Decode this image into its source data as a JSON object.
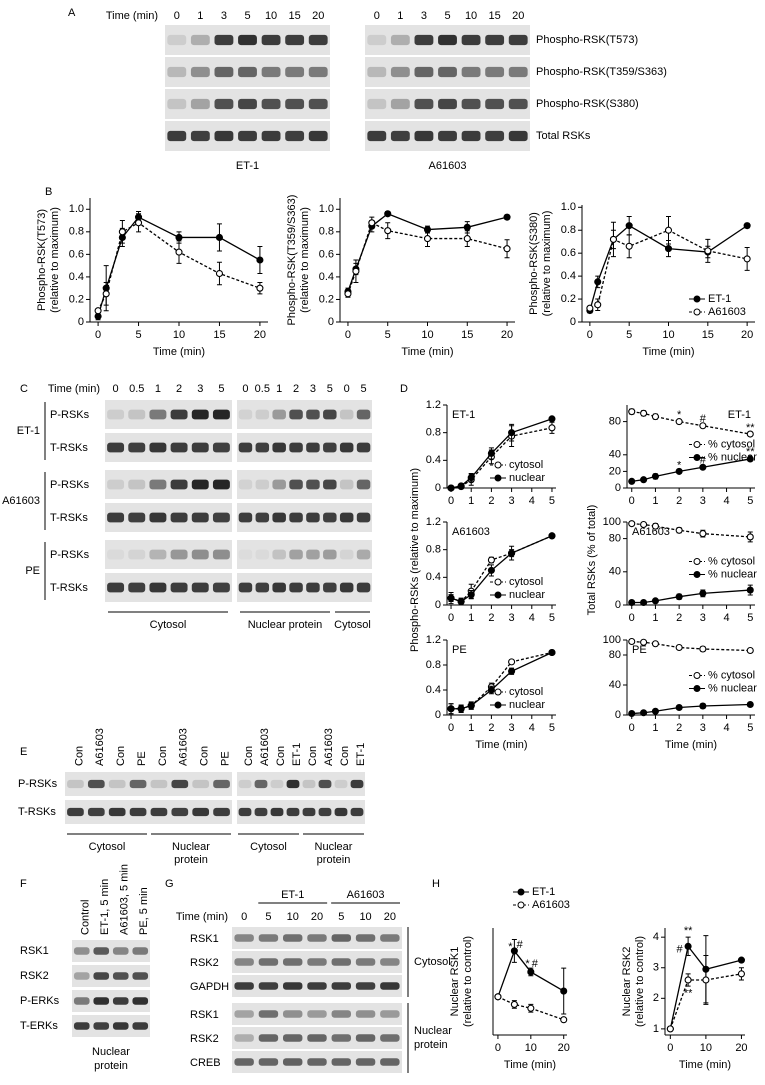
{
  "panels": {
    "A": {
      "letter": "A",
      "time_label": "Time (min)",
      "times": [
        "0",
        "1",
        "3",
        "5",
        "10",
        "15",
        "20"
      ],
      "rows": [
        "Phospho-RSK(T573)",
        "Phospho-RSK(T359/S363)",
        "Phospho-RSK(S380)",
        "Total RSKs"
      ],
      "groups": [
        "ET-1",
        "A61603"
      ]
    },
    "B": {
      "letter": "B"
    },
    "C": {
      "letter": "C",
      "time_label": "Time (min)",
      "times": [
        "0",
        "0.5",
        "1",
        "2",
        "3",
        "5",
        "0",
        "0.5",
        "1",
        "2",
        "3",
        "5",
        "0",
        "5"
      ],
      "treatments": [
        "ET-1",
        "A61603",
        "PE"
      ],
      "rows": [
        "P-RSKs",
        "T-RSKs"
      ],
      "fractions": [
        "Cytosol",
        "Nuclear protein",
        "Cytosol"
      ]
    },
    "D": {
      "letter": "D",
      "ylabel_left": "Phospho-RSKs (relative to maximum)",
      "ylabel_right": "Total RSKs (% of total)"
    },
    "E": {
      "letter": "E",
      "lanes": [
        "Con",
        "A61603",
        "Con",
        "PE",
        "Con",
        "A61603",
        "Con",
        "PE",
        "Con",
        "A61603",
        "Con",
        "ET-1",
        "Con",
        "A61603",
        "Con",
        "ET-1"
      ],
      "rows": [
        "P-RSKs",
        "T-RSKs"
      ],
      "fractions": [
        [
          "Cytosol"
        ],
        [
          "Nuclear",
          "protein"
        ],
        [
          "Cytosol"
        ],
        [
          "Nuclear",
          "protein"
        ]
      ]
    },
    "F": {
      "letter": "F",
      "lanes": [
        "Control",
        "ET-1, 5 min",
        "A61603, 5 min",
        "PE, 5 min"
      ],
      "rows": [
        "RSK1",
        "RSK2",
        "P-ERKs",
        "T-ERKs"
      ],
      "fraction": [
        "Nuclear",
        "protein"
      ]
    },
    "G": {
      "letter": "G",
      "time_label": "Time (min)",
      "groups": [
        "ET-1",
        "A61603"
      ],
      "times": [
        "0",
        "5",
        "10",
        "20",
        "5",
        "10",
        "20"
      ],
      "rows": [
        "RSK1",
        "RSK2",
        "GAPDH",
        "RSK1",
        "RSK2",
        "CREB"
      ],
      "fractions": [
        [
          "Cytosol"
        ],
        [
          "Nuclear",
          "protein"
        ]
      ]
    },
    "H": {
      "letter": "H"
    }
  },
  "chart_data": [
    {
      "type": "line",
      "ylabel": [
        "Phospho-RSK(T573)",
        "(relative to maximum)"
      ],
      "xlabel": "Time (min)",
      "x": [
        0,
        1,
        3,
        5,
        10,
        15,
        20
      ],
      "xlim": [
        -1,
        21
      ],
      "xticks": [
        0,
        5,
        10,
        15,
        20
      ],
      "ylim": [
        0,
        1.1
      ],
      "yticks": [
        0,
        0.2,
        0.4,
        0.6,
        0.8,
        {
          "value": 1,
          "label": "1.0"
        }
      ],
      "series": [
        {
          "style": "solid",
          "marker": "filled",
          "color": "#000000",
          "values": [
            0.05,
            0.3,
            0.75,
            0.93,
            0.75,
            0.75,
            0.55
          ],
          "errors": [
            0.03,
            0.2,
            0.08,
            0.05,
            0.05,
            0.12,
            0.12
          ]
        },
        {
          "style": "dashed",
          "marker": "open",
          "color": "#000000",
          "values": [
            0.1,
            0.25,
            0.8,
            0.88,
            0.62,
            0.43,
            0.3
          ],
          "errors": [
            0.02,
            0.1,
            0.1,
            0.08,
            0.1,
            0.1,
            0.05
          ]
        }
      ]
    },
    {
      "type": "line",
      "ylabel": [
        "Phospho-RSK(T359/S363)",
        "(relative to maximum)"
      ],
      "xlabel": "Time (min)",
      "x": [
        0,
        1,
        3,
        5,
        10,
        15,
        20
      ],
      "xlim": [
        -1,
        21
      ],
      "xticks": [
        0,
        5,
        10,
        15,
        20
      ],
      "ylim": [
        0,
        1.1
      ],
      "yticks": [
        0,
        0.2,
        0.4,
        0.6,
        0.8,
        {
          "value": 1,
          "label": "1.0"
        }
      ],
      "series": [
        {
          "style": "solid",
          "marker": "filled",
          "color": "#000000",
          "values": [
            0.27,
            0.47,
            0.85,
            0.96,
            0.82,
            0.84,
            0.93
          ],
          "errors": [
            0.03,
            0.05,
            0.05,
            0.02,
            0.03,
            0.05,
            0.02
          ]
        },
        {
          "style": "dashed",
          "marker": "open",
          "color": "#000000",
          "values": [
            0.25,
            0.45,
            0.88,
            0.81,
            0.74,
            0.74,
            0.65
          ],
          "errors": [
            0.03,
            0.1,
            0.05,
            0.07,
            0.07,
            0.07,
            0.08
          ]
        }
      ]
    },
    {
      "type": "line",
      "ylabel": [
        "Phospho-RSK(S380)",
        "(relative to maximum)"
      ],
      "xlabel": "Time (min)",
      "x": [
        0,
        1,
        3,
        5,
        10,
        15,
        20
      ],
      "xlim": [
        -1,
        21
      ],
      "xticks": [
        0,
        5,
        10,
        15,
        20
      ],
      "ylim": [
        0,
        1.02
      ],
      "yticks": [
        0,
        0.2,
        0.4,
        0.6,
        0.8,
        {
          "value": 1,
          "label": "1.0"
        }
      ],
      "legend": "lower right",
      "series": [
        {
          "name": "ET-1",
          "style": "solid",
          "marker": "filled",
          "color": "#000000",
          "values": [
            0.1,
            0.35,
            0.72,
            0.84,
            0.64,
            0.61,
            0.84
          ],
          "errors": [
            0.02,
            0.05,
            0.08,
            0.08,
            0.07,
            0.05,
            0.02
          ]
        },
        {
          "name": "A61603",
          "style": "dashed",
          "marker": "open",
          "color": "#000000",
          "values": [
            0.12,
            0.15,
            0.72,
            0.66,
            0.8,
            0.62,
            0.55
          ],
          "errors": [
            0.02,
            0.05,
            0.15,
            0.1,
            0.12,
            0.1,
            0.1
          ]
        }
      ]
    },
    {
      "type": "line",
      "label": "ET-1",
      "x": [
        0,
        0.5,
        1,
        2,
        3,
        5
      ],
      "xlim": [
        -0.2,
        5.2
      ],
      "xticks": [
        0,
        1,
        2,
        3,
        4,
        5
      ],
      "ylim": [
        0,
        1.2
      ],
      "yticks": [
        0,
        0.4,
        0.8,
        1.2
      ],
      "legend": "lower right",
      "series": [
        {
          "name": "cytosol",
          "style": "dashed",
          "marker": "open",
          "color": "#000000",
          "values": [
            0,
            0.02,
            0.12,
            0.45,
            0.75,
            0.87
          ],
          "errors": [
            0.02,
            0.02,
            0.08,
            0.1,
            0.15,
            0.08
          ]
        },
        {
          "name": "nuclear",
          "style": "solid",
          "marker": "filled",
          "color": "#000000",
          "values": [
            0,
            0.03,
            0.15,
            0.5,
            0.8,
            1.0
          ],
          "errors": [
            0.02,
            0.02,
            0.06,
            0.08,
            0.12,
            0.02
          ]
        }
      ]
    },
    {
      "type": "line",
      "label": "ET-1",
      "x": [
        0,
        0.5,
        1,
        2,
        3,
        5
      ],
      "xlim": [
        -0.2,
        5.2
      ],
      "xticks": [
        0,
        1,
        2,
        3,
        4,
        5
      ],
      "ylim": [
        0,
        100
      ],
      "yticks": [
        0,
        20,
        40,
        80
      ],
      "legend": "center right",
      "series": [
        {
          "name": "% cytosol",
          "style": "dashed",
          "marker": "open",
          "color": "#000000",
          "values": [
            92,
            90,
            86,
            80,
            75,
            65
          ],
          "errors": [
            3,
            3,
            3,
            2,
            2,
            2
          ]
        },
        {
          "name": "% nuclear",
          "style": "solid",
          "marker": "filled",
          "color": "#000000",
          "values": [
            8,
            10,
            14,
            20,
            25,
            35
          ],
          "errors": [
            2,
            2,
            3,
            2,
            2,
            2
          ]
        }
      ],
      "annotations": [
        {
          "text": "*",
          "x": 2,
          "y": 88
        },
        {
          "text": "#",
          "x": 3,
          "y": 83
        },
        {
          "text": "**",
          "x": 5,
          "y": 72
        },
        {
          "text": "*",
          "x": 2,
          "y": 27
        },
        {
          "text": "#",
          "x": 3,
          "y": 33
        },
        {
          "text": "**",
          "x": 5,
          "y": 43
        }
      ]
    },
    {
      "type": "line",
      "label": "A61603",
      "x": [
        0,
        0.5,
        1,
        2,
        3,
        5
      ],
      "xlim": [
        -0.2,
        5.2
      ],
      "xticks": [
        0,
        1,
        2,
        3,
        4,
        5
      ],
      "ylim": [
        0,
        1.2
      ],
      "yticks": [
        0,
        0.4,
        0.8,
        1.2
      ],
      "legend": "lower right",
      "series": [
        {
          "name": "cytosol",
          "style": "dashed",
          "marker": "open",
          "color": "#000000",
          "values": [
            0.1,
            0.05,
            0.2,
            0.65,
            0.75,
            1.0
          ],
          "errors": [
            0.08,
            0.04,
            0.1,
            0.04,
            0.1,
            0.02
          ]
        },
        {
          "name": "nuclear",
          "style": "solid",
          "marker": "filled",
          "color": "#000000",
          "values": [
            0.1,
            0.05,
            0.15,
            0.5,
            0.75,
            1.0
          ],
          "errors": [
            0.05,
            0.05,
            0.06,
            0.08,
            0.05,
            0.02
          ]
        }
      ]
    },
    {
      "type": "line",
      "label": "A61603",
      "x": [
        0,
        0.5,
        1,
        2,
        3,
        5
      ],
      "xlim": [
        -0.2,
        5.2
      ],
      "xticks": [
        0,
        1,
        2,
        3,
        4,
        5
      ],
      "ylim": [
        0,
        100
      ],
      "yticks": [
        0,
        40,
        80,
        100
      ],
      "legend": "center right",
      "series": [
        {
          "name": "% cytosol",
          "style": "dashed",
          "marker": "open",
          "color": "#000000",
          "values": [
            98,
            97,
            95,
            90,
            86,
            82
          ],
          "errors": [
            2,
            2,
            3,
            3,
            4,
            6
          ]
        },
        {
          "name": "% nuclear",
          "style": "solid",
          "marker": "filled",
          "color": "#000000",
          "values": [
            3,
            3,
            5,
            10,
            14,
            18
          ],
          "errors": [
            1,
            1,
            2,
            3,
            4,
            6
          ]
        }
      ]
    },
    {
      "type": "line",
      "label": "PE",
      "xlabel": "Time (min)",
      "x": [
        0,
        0.5,
        1,
        2,
        3,
        5
      ],
      "xlim": [
        -0.2,
        5.2
      ],
      "xticks": [
        0,
        1,
        2,
        3,
        4,
        5
      ],
      "ylim": [
        0,
        1.2
      ],
      "yticks": [
        0,
        0.4,
        0.8,
        1.2
      ],
      "legend": "lower right",
      "series": [
        {
          "name": "cytosol",
          "style": "dashed",
          "marker": "open",
          "color": "#000000",
          "values": [
            0.1,
            0.1,
            0.15,
            0.45,
            0.85,
            1.0
          ],
          "errors": [
            0.08,
            0.06,
            0.05,
            0.06,
            0.03,
            0.02
          ]
        },
        {
          "name": "nuclear",
          "style": "solid",
          "marker": "filled",
          "color": "#000000",
          "values": [
            0.1,
            0.1,
            0.15,
            0.4,
            0.7,
            1.0
          ],
          "errors": [
            0.08,
            0.05,
            0.06,
            0.06,
            0.05,
            0.02
          ]
        }
      ]
    },
    {
      "type": "line",
      "label": "PE",
      "xlabel": "Time (min)",
      "x": [
        0,
        0.5,
        1,
        2,
        3,
        5
      ],
      "xlim": [
        -0.2,
        5.2
      ],
      "xticks": [
        0,
        1,
        2,
        3,
        4,
        5
      ],
      "ylim": [
        0,
        100
      ],
      "yticks": [
        0,
        40,
        80,
        100
      ],
      "legend": "center right",
      "series": [
        {
          "name": "% cytosol",
          "style": "dashed",
          "marker": "open",
          "color": "#000000",
          "values": [
            98,
            97,
            95,
            90,
            88,
            86
          ],
          "errors": [
            2,
            2,
            2,
            2,
            3,
            2
          ]
        },
        {
          "name": "% nuclear",
          "style": "solid",
          "marker": "filled",
          "color": "#000000",
          "values": [
            2,
            3,
            5,
            10,
            12,
            14
          ],
          "errors": [
            1,
            1,
            1,
            2,
            3,
            2
          ]
        }
      ]
    },
    {
      "type": "line",
      "ylabel": [
        "Nuclear RSK1",
        "(relative to control)"
      ],
      "xlabel": "Time (min)",
      "x": [
        0,
        5,
        10,
        20
      ],
      "xlim": [
        -1.5,
        21
      ],
      "xticks": [
        0,
        10,
        20
      ],
      "ylim": [
        0,
        2.8
      ],
      "legend": "above",
      "series": [
        {
          "name": "ET-1",
          "style": "solid",
          "marker": "filled",
          "color": "#000000",
          "values": [
            1,
            2.2,
            1.65,
            1.15
          ],
          "errors": [
            0,
            0.3,
            0.1,
            0.6
          ]
        },
        {
          "name": "A61603",
          "style": "dashed",
          "marker": "open",
          "color": "#000000",
          "values": [
            1,
            0.8,
            0.7,
            0.4
          ],
          "errors": [
            0,
            0.1,
            0.1,
            0.05
          ]
        }
      ],
      "annotations": [
        {
          "text": "*",
          "x": 3.8,
          "y": 2.3
        },
        {
          "text": "#",
          "x": 6.6,
          "y": 2.35
        },
        {
          "text": "*",
          "x": 9,
          "y": 1.85
        },
        {
          "text": "#",
          "x": 11.2,
          "y": 1.85
        }
      ]
    },
    {
      "type": "line",
      "ylabel": [
        "Nuclear RSK2",
        "(relative to control)"
      ],
      "xlabel": "Time (min)",
      "x": [
        0,
        5,
        10,
        20
      ],
      "xlim": [
        -1.5,
        21
      ],
      "xticks": [
        0,
        10,
        20
      ],
      "ylim": [
        0.8,
        4.3
      ],
      "yticks": [
        1,
        2,
        3,
        4
      ],
      "series": [
        {
          "style": "solid",
          "marker": "filled",
          "color": "#000000",
          "values": [
            1,
            3.7,
            2.95,
            3.25
          ],
          "errors": [
            0,
            0.3,
            1.1,
            0.05
          ]
        },
        {
          "style": "dashed",
          "marker": "open",
          "color": "#000000",
          "values": [
            1,
            2.6,
            2.6,
            2.8
          ],
          "errors": [
            0,
            0.2,
            0.8,
            0.2
          ]
        }
      ],
      "annotations": [
        {
          "text": "**",
          "x": 5,
          "y": 4.2
        },
        {
          "text": "#",
          "x": 2.6,
          "y": 3.6
        },
        {
          "text": "**",
          "x": 5,
          "y": 2.15
        }
      ]
    }
  ]
}
